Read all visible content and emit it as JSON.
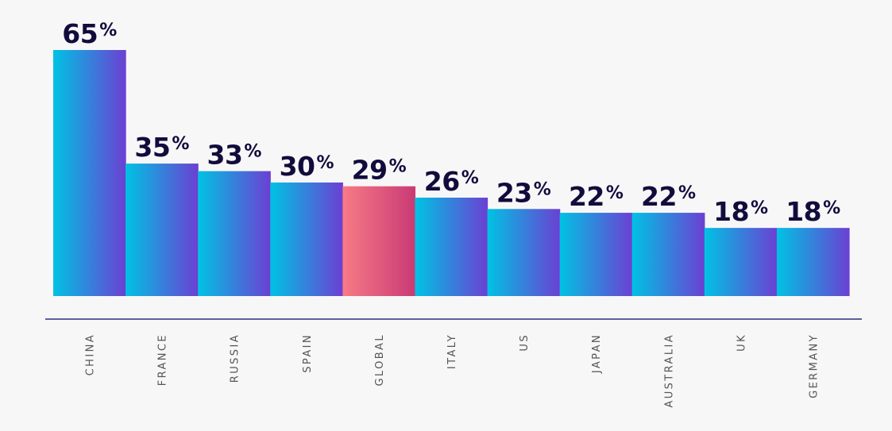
{
  "chart_data": {
    "type": "bar",
    "categories": [
      "CHINA",
      "FRANCE",
      "RUSSIA",
      "SPAIN",
      "GLOBAL",
      "ITALY",
      "US",
      "JAPAN",
      "AUSTRALIA",
      "UK",
      "GERMANY"
    ],
    "values": [
      65,
      35,
      33,
      30,
      29,
      26,
      23,
      22,
      22,
      18,
      18
    ],
    "value_labels": [
      "65%",
      "35%",
      "33%",
      "30%",
      "29%",
      "26%",
      "23%",
      "22%",
      "22%",
      "18%",
      "18%"
    ],
    "unit": "%",
    "highlighted_category": "GLOBAL",
    "ylim": [
      0,
      65
    ],
    "grid": false,
    "legend": "none",
    "title": "",
    "xlabel": "",
    "ylabel": ""
  },
  "colors": {
    "background": "#f7f7f8",
    "bar_gradient_start": "#00c2e3",
    "bar_gradient_end": "#6c3fd3",
    "highlight_gradient_start": "#f77b86",
    "highlight_gradient_end": "#c93a75",
    "value_text": "#120c3c",
    "axis_line": "#2b2d7a",
    "category_text": "#555555"
  }
}
